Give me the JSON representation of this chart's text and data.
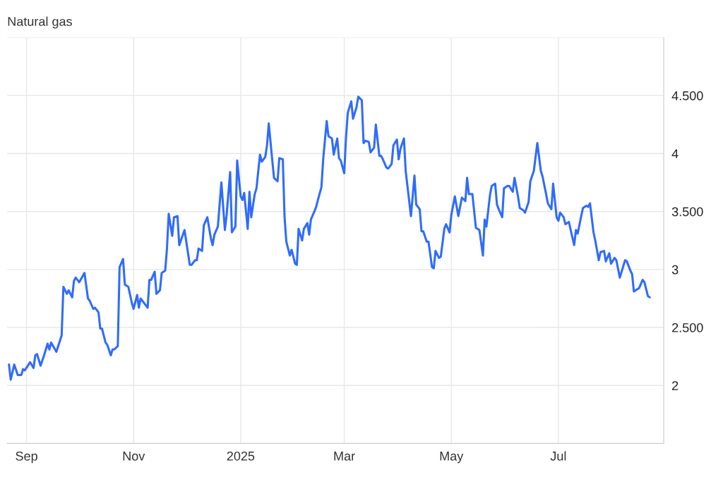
{
  "chart_data": {
    "type": "line",
    "title": "Natural gas",
    "x": [
      "2024-08-22",
      "2024-08-23",
      "2024-08-25",
      "2024-08-27",
      "2024-08-29",
      "2024-08-30",
      "2024-08-31",
      "2024-09-03",
      "2024-09-05",
      "2024-09-06",
      "2024-09-07",
      "2024-09-09",
      "2024-09-11",
      "2024-09-13",
      "2024-09-14",
      "2024-09-15",
      "2024-09-18",
      "2024-09-21",
      "2024-09-22",
      "2024-09-24",
      "2024-09-25",
      "2024-09-27",
      "2024-09-28",
      "2024-09-29",
      "2024-10-01",
      "2024-10-04",
      "2024-10-06",
      "2024-10-07",
      "2024-10-09",
      "2024-10-10",
      "2024-10-12",
      "2024-10-13",
      "2024-10-14",
      "2024-10-16",
      "2024-10-17",
      "2024-10-19",
      "2024-10-20",
      "2024-10-21",
      "2024-10-23",
      "2024-10-24",
      "2024-10-26",
      "2024-10-27",
      "2024-10-29",
      "2024-10-31",
      "2024-11-01",
      "2024-11-03",
      "2024-11-04",
      "2024-11-05",
      "2024-11-09",
      "2024-11-10",
      "2024-11-11",
      "2024-11-13",
      "2024-11-14",
      "2024-11-16",
      "2024-11-17",
      "2024-11-19",
      "2024-11-20",
      "2024-11-21",
      "2024-11-23",
      "2024-11-24",
      "2024-11-26",
      "2024-11-27",
      "2024-11-30",
      "2024-12-03",
      "2024-12-04",
      "2024-12-06",
      "2024-12-07",
      "2024-12-08",
      "2024-12-10",
      "2024-12-11",
      "2024-12-13",
      "2024-12-15",
      "2024-12-16",
      "2024-12-17",
      "2024-12-19",
      "2024-12-21",
      "2024-12-23",
      "2024-12-24",
      "2024-12-26",
      "2024-12-27",
      "2024-12-29",
      "2024-12-30",
      "2025-01-01",
      "2025-01-02",
      "2025-01-03",
      "2025-01-05",
      "2025-01-06",
      "2025-01-07",
      "2025-01-09",
      "2025-01-10",
      "2025-01-12",
      "2025-01-13",
      "2025-01-15",
      "2025-01-16",
      "2025-01-17",
      "2025-01-19",
      "2025-01-20",
      "2025-01-22",
      "2025-01-23",
      "2025-01-25",
      "2025-01-26",
      "2025-01-27",
      "2025-01-29",
      "2025-01-30",
      "2025-02-01",
      "2025-02-02",
      "2025-02-03",
      "2025-02-05",
      "2025-02-06",
      "2025-02-08",
      "2025-02-09",
      "2025-02-10",
      "2025-02-12",
      "2025-02-13",
      "2025-02-14",
      "2025-02-16",
      "2025-02-17",
      "2025-02-19",
      "2025-02-20",
      "2025-02-22",
      "2025-02-23",
      "2025-02-25",
      "2025-02-26",
      "2025-02-27",
      "2025-03-01",
      "2025-03-02",
      "2025-03-03",
      "2025-03-05",
      "2025-03-06",
      "2025-03-08",
      "2025-03-09",
      "2025-03-11",
      "2025-03-12",
      "2025-03-13",
      "2025-03-15",
      "2025-03-16",
      "2025-03-18",
      "2025-03-19",
      "2025-03-21",
      "2025-03-22",
      "2025-03-23",
      "2025-03-25",
      "2025-03-26",
      "2025-03-28",
      "2025-03-29",
      "2025-03-31",
      "2025-04-01",
      "2025-04-02",
      "2025-04-04",
      "2025-04-05",
      "2025-04-08",
      "2025-04-10",
      "2025-04-11",
      "2025-04-13",
      "2025-04-14",
      "2025-04-15",
      "2025-04-17",
      "2025-04-18",
      "2025-04-20",
      "2025-04-21",
      "2025-04-22",
      "2025-04-24",
      "2025-04-25",
      "2025-04-27",
      "2025-04-28",
      "2025-04-30",
      "2025-05-01",
      "2025-05-03",
      "2025-05-05",
      "2025-05-07",
      "2025-05-09",
      "2025-05-10",
      "2025-05-11",
      "2025-05-13",
      "2025-05-15",
      "2025-05-17",
      "2025-05-19",
      "2025-05-20",
      "2025-05-21",
      "2025-05-23",
      "2025-05-24",
      "2025-05-26",
      "2025-05-27",
      "2025-05-28",
      "2025-05-30",
      "2025-05-31",
      "2025-06-02",
      "2025-06-03",
      "2025-06-05",
      "2025-06-06",
      "2025-06-08",
      "2025-06-09",
      "2025-06-11",
      "2025-06-12",
      "2025-06-14",
      "2025-06-15",
      "2025-06-17",
      "2025-06-18",
      "2025-06-19",
      "2025-06-21",
      "2025-06-22",
      "2025-06-24",
      "2025-06-25",
      "2025-06-27",
      "2025-06-28",
      "2025-06-30",
      "2025-07-01",
      "2025-07-02",
      "2025-07-04",
      "2025-07-05",
      "2025-07-07",
      "2025-07-08",
      "2025-07-10",
      "2025-07-11",
      "2025-07-12",
      "2025-07-14",
      "2025-07-15",
      "2025-07-17",
      "2025-07-18",
      "2025-07-19",
      "2025-07-21",
      "2025-07-22",
      "2025-07-24",
      "2025-07-25",
      "2025-07-27",
      "2025-07-28",
      "2025-07-30",
      "2025-07-31",
      "2025-08-02",
      "2025-08-03",
      "2025-08-05",
      "2025-08-08",
      "2025-08-09",
      "2025-08-11",
      "2025-08-12",
      "2025-08-13",
      "2025-08-16",
      "2025-08-18",
      "2025-08-19",
      "2025-08-21",
      "2025-08-22"
    ],
    "series": [
      {
        "color": "#2f6bff",
        "values": [
          2.18,
          2.05,
          2.18,
          2.09,
          2.09,
          2.14,
          2.13,
          2.2,
          2.15,
          2.26,
          2.27,
          2.17,
          2.26,
          2.36,
          2.31,
          2.37,
          2.29,
          2.43,
          2.85,
          2.79,
          2.82,
          2.76,
          2.9,
          2.93,
          2.89,
          2.97,
          2.75,
          2.73,
          2.66,
          2.67,
          2.63,
          2.49,
          2.49,
          2.37,
          2.35,
          2.26,
          2.31,
          2.31,
          2.34,
          3.02,
          3.09,
          2.87,
          2.85,
          2.71,
          2.66,
          2.78,
          2.67,
          2.75,
          2.67,
          2.91,
          2.91,
          2.98,
          2.79,
          2.82,
          2.97,
          2.99,
          3.18,
          3.48,
          3.29,
          3.45,
          3.46,
          3.21,
          3.34,
          3.04,
          3.04,
          3.08,
          3.08,
          3.18,
          3.16,
          3.38,
          3.45,
          3.27,
          3.21,
          3.3,
          3.37,
          3.75,
          3.34,
          3.47,
          3.84,
          3.32,
          3.37,
          3.94,
          3.63,
          3.6,
          3.66,
          3.35,
          3.67,
          3.45,
          3.65,
          3.7,
          3.99,
          3.93,
          3.97,
          4.07,
          4.26,
          3.94,
          3.79,
          3.76,
          3.96,
          3.95,
          3.45,
          3.24,
          3.12,
          3.17,
          3.05,
          3.04,
          3.35,
          3.25,
          3.35,
          3.4,
          3.3,
          3.43,
          3.5,
          3.54,
          3.6,
          3.71,
          3.95,
          4.28,
          4.15,
          4.13,
          3.99,
          4.13,
          3.96,
          3.94,
          3.83,
          4.14,
          4.35,
          4.45,
          4.3,
          4.4,
          4.49,
          4.46,
          4.09,
          4.11,
          4.1,
          4.01,
          4.05,
          4.25,
          3.98,
          3.98,
          3.95,
          3.88,
          3.87,
          3.91,
          4.07,
          4.12,
          3.95,
          4.04,
          4.13,
          3.85,
          3.46,
          3.81,
          3.56,
          3.52,
          3.33,
          3.33,
          3.24,
          3.24,
          3.02,
          3.01,
          3.16,
          3.1,
          3.11,
          3.35,
          3.39,
          3.32,
          3.47,
          3.63,
          3.46,
          3.62,
          3.59,
          3.79,
          3.65,
          3.65,
          3.36,
          3.34,
          3.12,
          3.43,
          3.37,
          3.64,
          3.72,
          3.74,
          3.56,
          3.52,
          3.45,
          3.7,
          3.72,
          3.72,
          3.67,
          3.79,
          3.63,
          3.53,
          3.51,
          3.49,
          3.58,
          3.76,
          3.85,
          3.97,
          4.09,
          3.85,
          3.8,
          3.65,
          3.57,
          3.52,
          3.74,
          3.45,
          3.42,
          3.49,
          3.45,
          3.39,
          3.41,
          3.34,
          3.21,
          3.34,
          3.31,
          3.46,
          3.53,
          3.55,
          3.54,
          3.57,
          3.32,
          3.25,
          3.08,
          3.15,
          3.16,
          3.07,
          3.14,
          3.05,
          3.1,
          3.08,
          2.93,
          3.08,
          3.07,
          2.99,
          2.96,
          2.81,
          2.84,
          2.91,
          2.89,
          2.77,
          2.76
        ]
      }
    ],
    "xlim": [
      "2024-08-21",
      "2025-08-30"
    ],
    "xticks": [
      {
        "value": "2024-09-01",
        "label": "Sep"
      },
      {
        "value": "2024-11-01",
        "label": "Nov"
      },
      {
        "value": "2025-01-01",
        "label": "2025"
      },
      {
        "value": "2025-03-01",
        "label": "Mar"
      },
      {
        "value": "2025-05-01",
        "label": "May"
      },
      {
        "value": "2025-07-01",
        "label": "Jul"
      }
    ],
    "ylim": [
      1.5,
      5.0
    ],
    "yticks": [
      2,
      {
        "value": 2.5,
        "label": "2.500"
      },
      3,
      {
        "value": 3.5,
        "label": "3.500"
      },
      4,
      {
        "value": 4.5,
        "label": "4.500"
      },
      {
        "value": 5.0,
        "label": null
      }
    ],
    "grid": true,
    "line_style": "solid",
    "marker": "none",
    "legend": false
  }
}
